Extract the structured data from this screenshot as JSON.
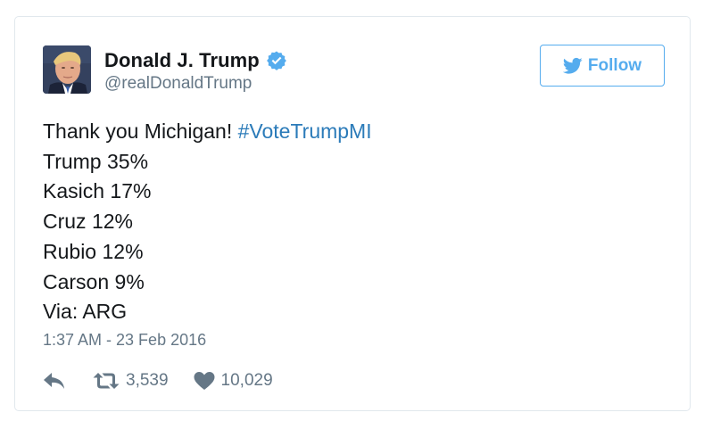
{
  "author": {
    "name": "Donald J. Trump",
    "handle": "@realDonaldTrump",
    "verified": true
  },
  "follow_button": {
    "label": "Follow"
  },
  "tweet": {
    "intro": "Thank you Michigan! ",
    "hashtag": "#VoteTrumpMI",
    "lines": [
      "Trump 35%",
      "Kasich 17%",
      "Cruz 12%",
      "Rubio 12%",
      "Carson 9%",
      "Via: ARG"
    ],
    "timestamp": "1:37 AM - 23 Feb 2016"
  },
  "actions": {
    "retweet_count": "3,539",
    "like_count": "10,029"
  },
  "colors": {
    "twitter_blue": "#55acee",
    "hashtag": "#2b7bb9",
    "secondary_text": "#657786",
    "primary_text": "#14171a"
  },
  "icons": {
    "verified": "verified-badge-icon",
    "follow": "twitter-bird-icon",
    "reply": "reply-icon",
    "retweet": "retweet-icon",
    "like": "heart-icon"
  }
}
